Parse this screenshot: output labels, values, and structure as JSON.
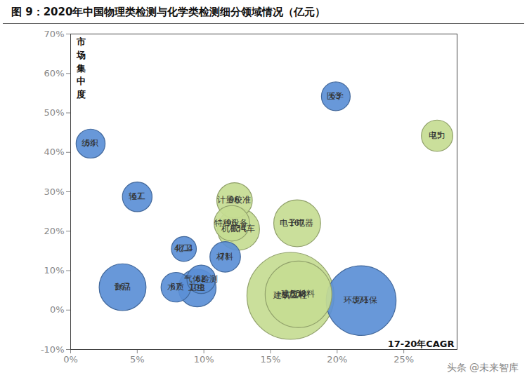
{
  "chart_data": {
    "type": "scatter",
    "title": "图 9：2020年中国物理类检测与化学类检测细分领域情况（亿元）",
    "ylabel": "市场集中度",
    "xlabel": "17-20年CAGR",
    "watermark": "头条 @未来智库",
    "labels": [
      "建筑工程",
      "建筑材料",
      "环境环保",
      "食品",
      "电子电器",
      "机械汽车",
      "卫生",
      "计量校准",
      "特种设备",
      "电力",
      "材料",
      "纺织",
      "轻工",
      "水质",
      "医学",
      "气体检测",
      "化工"
    ],
    "x": [
      16.5,
      17.1,
      21.8,
      3.9,
      17.0,
      12.6,
      9.5,
      12.3,
      12.1,
      27.5,
      11.6,
      1.5,
      5.0,
      7.9,
      19.9,
      9.8,
      8.5
    ],
    "values": [
      3.6,
      4.0,
      2.4,
      5.8,
      22.0,
      20.5,
      5.6,
      27.8,
      22.0,
      44.2,
      13.5,
      42.2,
      28.7,
      5.8,
      54.2,
      7.8,
      15.5
    ],
    "sizes": [
      577,
      338,
      371,
      167,
      167,
      134,
      108,
      96,
      96,
      75,
      71,
      64,
      67,
      67,
      63,
      62,
      47.4
    ],
    "colors": [
      "#c6dc92",
      "#c6dc92",
      "#5b8fd6",
      "#5b8fd6",
      "#c6dc92",
      "#c6dc92",
      "#5b8fd6",
      "#c6dc92",
      "#c6dc92",
      "#c6dc92",
      "#5b8fd6",
      "#5b8fd6",
      "#5b8fd6",
      "#5b8fd6",
      "#5b8fd6",
      "#5b8fd6",
      "#5b8fd6"
    ],
    "data_labels": true,
    "grid": false,
    "xlim": [
      0,
      29
    ],
    "xticks": [
      {
        "value": 0,
        "label": "0%"
      },
      {
        "value": 5,
        "label": "5%"
      },
      {
        "value": 10,
        "label": "10%"
      },
      {
        "value": 15,
        "label": "15%"
      },
      {
        "value": 20,
        "label": "20%"
      },
      {
        "value": 25,
        "label": "25%"
      }
    ],
    "ylim": [
      -10,
      70
    ],
    "yticks": [
      {
        "value": -10,
        "label": "-10%"
      },
      {
        "value": 0,
        "label": "0%"
      },
      {
        "value": 10,
        "label": "10%"
      },
      {
        "value": 20,
        "label": "20%"
      },
      {
        "value": 30,
        "label": "30%"
      },
      {
        "value": 40,
        "label": "40%"
      },
      {
        "value": 50,
        "label": "50%"
      },
      {
        "value": 60,
        "label": "60%"
      },
      {
        "value": 70,
        "label": "70%"
      }
    ]
  }
}
